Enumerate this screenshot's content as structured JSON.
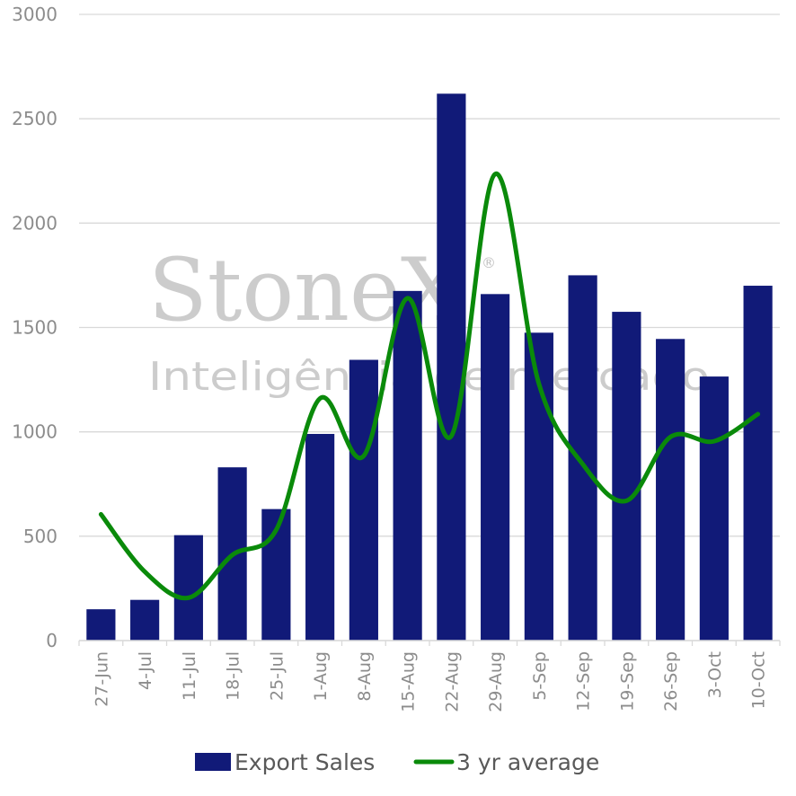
{
  "chart_data": {
    "type": "bar",
    "categories": [
      "27-Jun",
      "4-Jul",
      "11-Jul",
      "18-Jul",
      "25-Jul",
      "1-Aug",
      "8-Aug",
      "15-Aug",
      "22-Aug",
      "29-Aug",
      "5-Sep",
      "12-Sep",
      "19-Sep",
      "26-Sep",
      "3-Oct",
      "10-Oct"
    ],
    "series": [
      {
        "name": "Export Sales",
        "type": "bar",
        "color": "#111a78",
        "values": [
          150,
          195,
          505,
          830,
          630,
          990,
          1345,
          1675,
          2620,
          1660,
          1475,
          1750,
          1575,
          1445,
          1265,
          1700
        ]
      },
      {
        "name": "3 yr average",
        "type": "line",
        "color": "#0a8a0a",
        "values": [
          605,
          330,
          205,
          410,
          530,
          1160,
          885,
          1640,
          980,
          2235,
          1230,
          845,
          670,
          975,
          955,
          1085
        ]
      }
    ],
    "ylim": [
      0,
      3000
    ],
    "yticks": [
      0,
      500,
      1000,
      1500,
      2000,
      2500,
      3000
    ],
    "grid": true,
    "legend_position": "bottom",
    "watermark": {
      "brand": "StoneX",
      "registered": "®",
      "tagline": "Inteligência de mercado"
    }
  }
}
